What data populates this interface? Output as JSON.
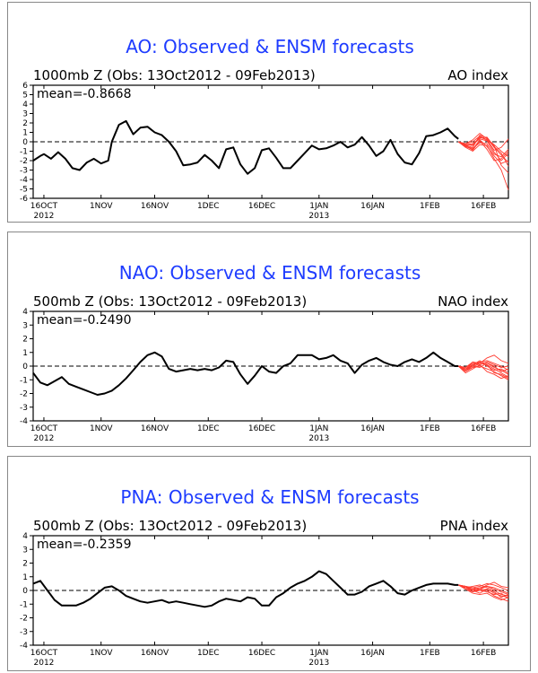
{
  "chart_data": [
    {
      "type": "line",
      "title": "AO: Observed & ENSM forecasts",
      "subtitle": "1000mb Z (Obs: 13Oct2012 - 09Feb2013)",
      "index_label": "AO index",
      "mean_label": "mean=-0.8668",
      "ylim": [
        -6,
        6
      ],
      "yticks": [
        "6",
        "5",
        "4",
        "3",
        "2",
        "1",
        "0",
        "-1",
        "-2",
        "-3",
        "-4",
        "-5",
        "-6"
      ],
      "xlim": [
        0,
        133
      ],
      "xticks": [
        {
          "label": "16OCT",
          "sub": "2012",
          "x": 3
        },
        {
          "label": "1NOV",
          "sub": "",
          "x": 19
        },
        {
          "label": "16NOV",
          "sub": "",
          "x": 34
        },
        {
          "label": "1DEC",
          "sub": "",
          "x": 49
        },
        {
          "label": "16DEC",
          "sub": "",
          "x": 64
        },
        {
          "label": "1JAN",
          "sub": "2013",
          "x": 80
        },
        {
          "label": "16JAN",
          "sub": "",
          "x": 95
        },
        {
          "label": "1FEB",
          "sub": "",
          "x": 111
        },
        {
          "label": "16FEB",
          "sub": "",
          "x": 126
        }
      ],
      "observed": {
        "x": [
          0,
          2,
          3,
          5,
          7,
          9,
          11,
          13,
          15,
          17,
          19,
          21,
          22,
          24,
          26,
          28,
          30,
          32,
          34,
          36,
          38,
          40,
          42,
          44,
          46,
          48,
          50,
          52,
          54,
          56,
          58,
          60,
          62,
          64,
          66,
          68,
          70,
          72,
          74,
          76,
          78,
          80,
          82,
          84,
          86,
          88,
          90,
          92,
          94,
          96,
          98,
          100,
          102,
          104,
          106,
          108,
          110,
          112,
          114,
          116,
          118,
          119
        ],
        "y": [
          -2.0,
          -1.5,
          -1.3,
          -1.8,
          -1.1,
          -1.8,
          -2.8,
          -3.0,
          -2.2,
          -1.8,
          -2.3,
          -2.0,
          0.0,
          1.8,
          2.2,
          0.8,
          1.5,
          1.6,
          1.0,
          0.7,
          0.0,
          -1.0,
          -2.5,
          -2.4,
          -2.2,
          -1.4,
          -2.0,
          -2.8,
          -0.8,
          -0.6,
          -2.4,
          -3.4,
          -2.8,
          -0.9,
          -0.7,
          -1.7,
          -2.8,
          -2.8,
          -2.0,
          -1.2,
          -0.4,
          -0.8,
          -0.7,
          -0.4,
          0.0,
          -0.6,
          -0.3,
          0.5,
          -0.4,
          -1.5,
          -1.0,
          0.2,
          -1.3,
          -2.2,
          -2.4,
          -1.2,
          0.6,
          0.7,
          1.0,
          1.4,
          0.6,
          0.3
        ]
      },
      "forecast": {
        "color": "#ff3b30",
        "x": [
          119,
          121,
          123,
          125,
          127,
          129,
          131,
          133
        ],
        "members": [
          [
            0.0,
            -0.4,
            -0.6,
            0.7,
            0.4,
            -0.6,
            -1.4,
            -2.2
          ],
          [
            0.0,
            -0.2,
            0.2,
            0.9,
            0.3,
            -0.3,
            -1.0,
            -1.6
          ],
          [
            0.0,
            -0.5,
            -0.8,
            0.2,
            -0.5,
            -1.5,
            -2.3,
            -2.0
          ],
          [
            0.0,
            -0.3,
            -0.4,
            0.5,
            0.2,
            -0.9,
            -0.6,
            0.3
          ],
          [
            0.0,
            -0.6,
            -1.0,
            -0.3,
            -0.4,
            -1.8,
            -3.0,
            -5.1
          ],
          [
            0.0,
            -0.4,
            -0.3,
            0.3,
            0.1,
            -1.1,
            -2.0,
            -1.2
          ],
          [
            0.0,
            -0.2,
            0.0,
            0.6,
            0.2,
            -0.4,
            -2.5,
            -3.3
          ],
          [
            0.0,
            -0.5,
            -0.7,
            -0.1,
            -0.2,
            -1.3,
            -1.6,
            -0.8
          ],
          [
            0.0,
            -0.3,
            -0.2,
            0.4,
            0.5,
            -0.5,
            -1.2,
            -2.6
          ],
          [
            0.0,
            -0.4,
            -0.9,
            0.1,
            -0.8,
            -2.0,
            -1.8,
            -1.0
          ]
        ]
      }
    },
    {
      "type": "line",
      "title": "NAO: Observed & ENSM forecasts",
      "subtitle": "500mb Z (Obs: 13Oct2012 - 09Feb2013)",
      "index_label": "NAO index",
      "mean_label": "mean=-0.2490",
      "ylim": [
        -4,
        4
      ],
      "yticks": [
        "4",
        "3",
        "2",
        "1",
        "0",
        "-1",
        "-2",
        "-3",
        "-4"
      ],
      "xlim": [
        0,
        133
      ],
      "xticks": [
        {
          "label": "16OCT",
          "sub": "2012",
          "x": 3
        },
        {
          "label": "1NOV",
          "sub": "",
          "x": 19
        },
        {
          "label": "16NOV",
          "sub": "",
          "x": 34
        },
        {
          "label": "1DEC",
          "sub": "",
          "x": 49
        },
        {
          "label": "16DEC",
          "sub": "",
          "x": 64
        },
        {
          "label": "1JAN",
          "sub": "2013",
          "x": 80
        },
        {
          "label": "16JAN",
          "sub": "",
          "x": 95
        },
        {
          "label": "1FEB",
          "sub": "",
          "x": 111
        },
        {
          "label": "16FEB",
          "sub": "",
          "x": 126
        }
      ],
      "observed": {
        "x": [
          0,
          2,
          4,
          6,
          8,
          10,
          12,
          14,
          16,
          18,
          20,
          22,
          24,
          26,
          28,
          30,
          32,
          34,
          36,
          38,
          40,
          42,
          44,
          46,
          48,
          50,
          52,
          54,
          56,
          58,
          60,
          62,
          64,
          66,
          68,
          70,
          72,
          74,
          76,
          78,
          80,
          82,
          84,
          86,
          88,
          90,
          92,
          94,
          96,
          98,
          100,
          102,
          104,
          106,
          108,
          110,
          112,
          114,
          116,
          118,
          119
        ],
        "y": [
          -0.5,
          -1.2,
          -1.4,
          -1.1,
          -0.8,
          -1.3,
          -1.5,
          -1.7,
          -1.9,
          -2.1,
          -2.0,
          -1.8,
          -1.4,
          -0.9,
          -0.3,
          0.3,
          0.8,
          1.0,
          0.7,
          -0.2,
          -0.4,
          -0.3,
          -0.2,
          -0.3,
          -0.2,
          -0.3,
          -0.1,
          0.4,
          0.3,
          -0.6,
          -1.3,
          -0.7,
          0.0,
          -0.4,
          -0.5,
          0.0,
          0.2,
          0.8,
          0.8,
          0.8,
          0.5,
          0.6,
          0.8,
          0.4,
          0.2,
          -0.5,
          0.1,
          0.4,
          0.6,
          0.3,
          0.1,
          0.0,
          0.3,
          0.5,
          0.3,
          0.6,
          1.0,
          0.6,
          0.3,
          0.0,
          0.0
        ]
      },
      "forecast": {
        "color": "#ff3b30",
        "x": [
          119,
          121,
          123,
          125,
          127,
          129,
          131,
          133
        ],
        "members": [
          [
            0.0,
            -0.3,
            0.1,
            0.2,
            0.1,
            -0.2,
            -0.5,
            -0.8
          ],
          [
            0.0,
            -0.2,
            0.2,
            0.3,
            0.4,
            0.2,
            0.0,
            -0.3
          ],
          [
            0.0,
            -0.4,
            -0.1,
            0.0,
            -0.2,
            -0.4,
            -0.7,
            -1.0
          ],
          [
            0.0,
            -0.1,
            0.3,
            0.2,
            0.6,
            0.8,
            0.4,
            0.2
          ],
          [
            0.0,
            -0.3,
            0.0,
            -0.1,
            0.2,
            -0.1,
            -0.3,
            -0.6
          ],
          [
            0.0,
            -0.2,
            0.1,
            0.4,
            0.0,
            -0.3,
            -0.2,
            -0.5
          ],
          [
            0.0,
            -0.5,
            -0.2,
            0.1,
            -0.4,
            -0.6,
            -0.9,
            -0.7
          ],
          [
            0.0,
            -0.1,
            0.2,
            0.1,
            0.3,
            0.1,
            -0.1,
            0.0
          ],
          [
            0.0,
            -0.3,
            -0.1,
            0.2,
            0.1,
            -0.5,
            -0.6,
            -0.9
          ],
          [
            0.0,
            -0.2,
            0.0,
            0.3,
            0.2,
            0.0,
            -0.4,
            -0.2
          ]
        ]
      }
    },
    {
      "type": "line",
      "title": "PNA: Observed & ENSM forecasts",
      "subtitle": "500mb Z (Obs: 13Oct2012 - 09Feb2013)",
      "index_label": "PNA index",
      "mean_label": "mean=-0.2359",
      "ylim": [
        -4,
        4
      ],
      "yticks": [
        "4",
        "3",
        "2",
        "1",
        "0",
        "-1",
        "-2",
        "-3",
        "-4"
      ],
      "xlim": [
        0,
        133
      ],
      "xticks": [
        {
          "label": "16OCT",
          "sub": "2012",
          "x": 3
        },
        {
          "label": "1NOV",
          "sub": "",
          "x": 19
        },
        {
          "label": "16NOV",
          "sub": "",
          "x": 34
        },
        {
          "label": "1DEC",
          "sub": "",
          "x": 49
        },
        {
          "label": "16DEC",
          "sub": "",
          "x": 64
        },
        {
          "label": "1JAN",
          "sub": "2013",
          "x": 80
        },
        {
          "label": "16JAN",
          "sub": "",
          "x": 95
        },
        {
          "label": "1FEB",
          "sub": "",
          "x": 111
        },
        {
          "label": "16FEB",
          "sub": "",
          "x": 126
        }
      ],
      "observed": {
        "x": [
          0,
          2,
          4,
          6,
          8,
          10,
          12,
          14,
          16,
          18,
          20,
          22,
          24,
          26,
          28,
          30,
          32,
          34,
          36,
          38,
          40,
          42,
          44,
          46,
          48,
          50,
          52,
          54,
          56,
          58,
          60,
          62,
          64,
          66,
          68,
          70,
          72,
          74,
          76,
          78,
          80,
          82,
          84,
          86,
          88,
          90,
          92,
          94,
          96,
          98,
          100,
          102,
          104,
          106,
          108,
          110,
          112,
          114,
          116,
          118,
          119
        ],
        "y": [
          0.5,
          0.7,
          0.0,
          -0.7,
          -1.1,
          -1.1,
          -1.1,
          -0.9,
          -0.6,
          -0.2,
          0.2,
          0.3,
          0.0,
          -0.4,
          -0.6,
          -0.8,
          -0.9,
          -0.8,
          -0.7,
          -0.9,
          -0.8,
          -0.9,
          -1.0,
          -1.1,
          -1.2,
          -1.1,
          -0.8,
          -0.6,
          -0.7,
          -0.8,
          -0.5,
          -0.6,
          -1.1,
          -1.1,
          -0.5,
          -0.2,
          0.2,
          0.5,
          0.7,
          1.0,
          1.4,
          1.2,
          0.7,
          0.2,
          -0.3,
          -0.3,
          -0.1,
          0.3,
          0.5,
          0.7,
          0.3,
          -0.2,
          -0.3,
          0.0,
          0.2,
          0.4,
          0.5,
          0.5,
          0.5,
          0.4,
          0.4
        ]
      },
      "forecast": {
        "color": "#ff3b30",
        "x": [
          119,
          121,
          123,
          125,
          127,
          129,
          131,
          133
        ],
        "members": [
          [
            0.4,
            0.3,
            0.1,
            0.2,
            0.3,
            0.1,
            -0.1,
            -0.3
          ],
          [
            0.4,
            0.2,
            -0.1,
            0.0,
            0.1,
            -0.2,
            -0.4,
            -0.5
          ],
          [
            0.4,
            0.3,
            0.2,
            0.3,
            0.5,
            0.4,
            0.2,
            0.0
          ],
          [
            0.4,
            0.1,
            -0.2,
            -0.3,
            -0.2,
            -0.5,
            -0.7,
            -0.5
          ],
          [
            0.4,
            0.3,
            0.0,
            0.1,
            0.4,
            0.6,
            0.3,
            0.2
          ],
          [
            0.4,
            0.2,
            0.1,
            0.0,
            -0.1,
            -0.3,
            -0.2,
            -0.6
          ],
          [
            0.4,
            0.2,
            0.3,
            0.4,
            0.2,
            0.0,
            -0.3,
            -0.4
          ],
          [
            0.4,
            0.1,
            -0.1,
            0.1,
            0.0,
            -0.4,
            -0.6,
            -0.8
          ],
          [
            0.4,
            0.3,
            0.2,
            0.1,
            0.3,
            0.2,
            0.0,
            -0.2
          ],
          [
            0.4,
            0.2,
            0.0,
            -0.2,
            0.1,
            -0.1,
            -0.5,
            -0.3
          ]
        ]
      }
    }
  ]
}
